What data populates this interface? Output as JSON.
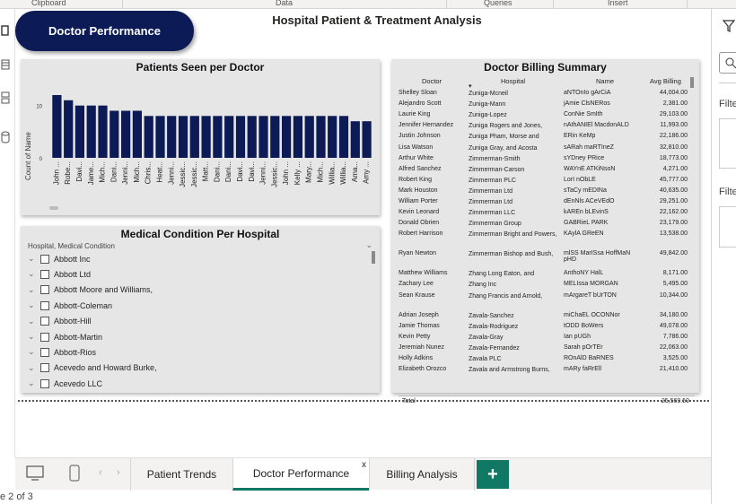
{
  "ribbon": {
    "groups": [
      "Clipboard",
      "Data",
      "Queries",
      "Insert"
    ]
  },
  "page_title": "Hospital Patient & Treatment Analysis",
  "nav_button": "Doctor Performance",
  "bar_chart": {
    "title": "Patients Seen per Doctor",
    "ylabel": "Count of Name"
  },
  "chart_data": {
    "type": "bar",
    "title": "Patients Seen per Doctor",
    "xlabel": "",
    "ylabel": "Count of Name",
    "ylim": [
      0,
      12
    ],
    "yticks": [
      0,
      10
    ],
    "categories": [
      "John ...",
      "Robe...",
      "Davi...",
      "Jame...",
      "Mich...",
      "Dani...",
      "Jenni...",
      "Mich...",
      "Chris...",
      "Heat...",
      "Jenni...",
      "Jessic...",
      "Jessic...",
      "Matt...",
      "Dani...",
      "Dani...",
      "Davi...",
      "Davi...",
      "Jenni...",
      "Jessic...",
      "John ...",
      "Kelly ...",
      "Mary...",
      "Mich...",
      "Willia...",
      "Willia...",
      "Ama...",
      "Amy ..."
    ],
    "values": [
      12,
      11,
      10,
      10,
      10,
      9,
      9,
      9,
      8,
      8,
      8,
      8,
      8,
      8,
      8,
      8,
      8,
      8,
      8,
      8,
      8,
      8,
      8,
      8,
      8,
      8,
      7,
      7
    ]
  },
  "slicer": {
    "title": "Medical Condition Per Hospital",
    "header": "Hospital, Medical Condition",
    "items": [
      "Abbott Inc",
      "Abbott Ltd",
      "Abbott Moore and Williams,",
      "Abbott-Coleman",
      "Abbott-Hill",
      "Abbott-Martin",
      "Abbott-Rios",
      "Acevedo and Howard Burke,",
      "Acevedo LLC"
    ]
  },
  "table": {
    "title": "Doctor Billing Summary",
    "columns": [
      "Doctor",
      "Hospital",
      "Name",
      "Avg Billing"
    ],
    "rows": [
      [
        "Shelley Sloan",
        "Zuniga-Mcneil",
        "aNTOnIo gArCiA",
        "44,004.00"
      ],
      [
        "Alejandro Scott",
        "Zuniga-Mann",
        "jAmie ClsNERos",
        "2,381.00"
      ],
      [
        "Laurie King",
        "Zuniga-Lopez",
        "ConNie SmIth",
        "29,103.00"
      ],
      [
        "Jennifer Hernandez",
        "Zuniga Rogers and Jones,",
        "nAthANIEl MacdonALD",
        "11,993.00"
      ],
      [
        "Justin Johnson",
        "Zuniga Pham, Morse and",
        "ERin KeMp",
        "22,186.00"
      ],
      [
        "Lisa Watson",
        "Zuniga Gray, and Acosta",
        "sARah maRTIneZ",
        "32,810.00"
      ],
      [
        "Arthur White",
        "Zimmerman-Smith",
        "sYDney PRice",
        "18,773.00"
      ],
      [
        "Alfred Sanchez",
        "Zimmerman-Carson",
        "WAYnE ATKiNsoN",
        "4,271.00"
      ],
      [
        "Robert King",
        "Zimmerman PLC",
        "LorI nObLE",
        "45,777.00"
      ],
      [
        "Mark Houston",
        "Zimmerman Ltd",
        "sTaCy mEDINa",
        "40,635.00"
      ],
      [
        "William Porter",
        "Zimmerman Ltd",
        "dEnNls ACeVEdO",
        "29,251.00"
      ],
      [
        "Kevin Leonard",
        "Zimmerman LLC",
        "kAREn bLEvinS",
        "22,162.00"
      ],
      [
        "Donald Obrien",
        "Zimmerman Group",
        "GABRieL PARK",
        "23,179.00"
      ],
      [
        "Robert Harrison",
        "Zimmerman Bright and Powers,",
        "KAylA GReEN",
        "13,538.00"
      ],
      [
        "Ryan Newton",
        "Zimmerman Bishop and Bush,",
        "mlSS MarISsa HoffMaN pHD",
        "49,842.00"
      ],
      [
        "Matthew Williams",
        "Zhang Long Eaton, and",
        "AnthoNY HalL",
        "8,171.00"
      ],
      [
        "Zachary Lee",
        "Zhang Inc",
        "MELIssa MORGAN",
        "5,495.00"
      ],
      [
        "Sean Krause",
        "Zhang Francis and Arnold,",
        "mArgareT bUrTON",
        "10,344.00"
      ],
      [
        "Adrian Joseph",
        "Zavala-Sanchez",
        "miChaEL OCONNor",
        "34,180.00"
      ],
      [
        "Jamie Thomas",
        "Zavala-Rodriguez",
        "tODD BoWers",
        "49,078.00"
      ],
      [
        "Kevin Petty",
        "Zavala-Gray",
        "Ian pUGh",
        "7,786.00"
      ],
      [
        "Jeremiah Nunez",
        "Zavala-Fernandez",
        "Sarah pOrTEr",
        "22,063.00"
      ],
      [
        "Holly Adkins",
        "Zavala PLC",
        "ROnAlD BaRNES",
        "3,525.00"
      ],
      [
        "Elizabeth Orozco",
        "Zavala and Armstrong Burns,",
        "mARy faRrEll",
        "21,410.00"
      ]
    ],
    "total_label": "Total",
    "total_value": "25,569.50"
  },
  "right_pane": {
    "filter_labels": [
      "Filte",
      "Filte"
    ]
  },
  "tabs": [
    "Patient Trends",
    "Doctor Performance",
    "Billing Analysis"
  ],
  "tab_close": "x",
  "add_tab": "+",
  "status": "e 2 of 3"
}
